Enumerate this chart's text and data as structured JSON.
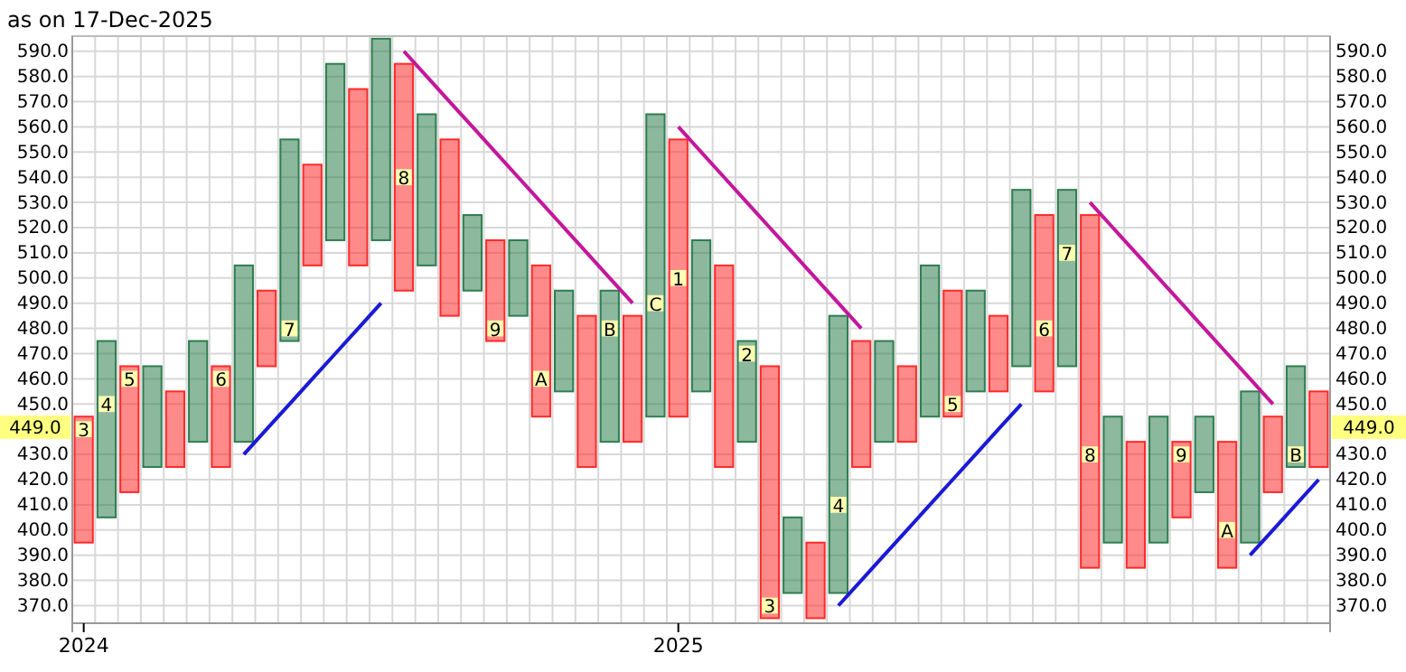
{
  "chart_data": {
    "type": "bar",
    "title": "as on 17-Dec-2025",
    "categories": [
      "2024",
      null,
      null,
      null,
      null,
      null,
      null,
      null,
      null,
      null,
      null,
      null,
      null,
      null,
      null,
      null,
      null,
      null,
      null,
      null,
      null,
      null,
      null,
      null,
      null,
      null,
      "2025",
      null,
      null,
      null,
      null,
      null,
      null,
      null,
      null,
      null,
      null,
      null,
      null,
      null,
      null,
      null,
      null,
      null,
      null,
      null,
      null,
      null,
      null,
      null,
      null,
      null,
      null,
      null,
      null
    ],
    "ylim": [
      363,
      596
    ],
    "yticks": [
      {
        "value": 370,
        "label": "370.0"
      },
      {
        "value": 380,
        "label": "380.0"
      },
      {
        "value": 390,
        "label": "390.0"
      },
      {
        "value": 400,
        "label": "400.0"
      },
      {
        "value": 410,
        "label": "410.0"
      },
      {
        "value": 420,
        "label": "420.0"
      },
      {
        "value": 430,
        "label": "430.0"
      },
      {
        "value": 450,
        "label": "450.0"
      },
      {
        "value": 460,
        "label": "460.0"
      },
      {
        "value": 470,
        "label": "470.0"
      },
      {
        "value": 480,
        "label": "480.0"
      },
      {
        "value": 490,
        "label": "490.0"
      },
      {
        "value": 500,
        "label": "500.0"
      },
      {
        "value": 510,
        "label": "510.0"
      },
      {
        "value": 520,
        "label": "520.0"
      },
      {
        "value": 530,
        "label": "530.0"
      },
      {
        "value": 540,
        "label": "540.0"
      },
      {
        "value": 550,
        "label": "550.0"
      },
      {
        "value": 560,
        "label": "560.0"
      },
      {
        "value": 570,
        "label": "570.0"
      },
      {
        "value": 580,
        "label": "580.0"
      },
      {
        "value": 590,
        "label": "590.0"
      }
    ],
    "y2lim": [
      363,
      596
    ],
    "y2ticks": [
      {
        "value": 370,
        "label": "370.0"
      },
      {
        "value": 380,
        "label": "380.0"
      },
      {
        "value": 390,
        "label": "390.0"
      },
      {
        "value": 400,
        "label": "400.0"
      },
      {
        "value": 410,
        "label": "410.0"
      },
      {
        "value": 420,
        "label": "420.0"
      },
      {
        "value": 430,
        "label": "430.0"
      },
      {
        "value": 450,
        "label": "450.0"
      },
      {
        "value": 460,
        "label": "460.0"
      },
      {
        "value": 470,
        "label": "470.0"
      },
      {
        "value": 480,
        "label": "480.0"
      },
      {
        "value": 490,
        "label": "490.0"
      },
      {
        "value": 500,
        "label": "500.0"
      },
      {
        "value": 510,
        "label": "510.0"
      },
      {
        "value": 520,
        "label": "520.0"
      },
      {
        "value": 530,
        "label": "530.0"
      },
      {
        "value": 540,
        "label": "540.0"
      },
      {
        "value": 550,
        "label": "550.0"
      },
      {
        "value": 560,
        "label": "560.0"
      },
      {
        "value": 570,
        "label": "570.0"
      },
      {
        "value": 580,
        "label": "580.0"
      },
      {
        "value": 590,
        "label": "590.0"
      }
    ],
    "grid": true,
    "series": [
      {
        "base": [
          395,
          405,
          415,
          425,
          425,
          435,
          425,
          435,
          465,
          475,
          505,
          515,
          505,
          515,
          495,
          505,
          485,
          495,
          475,
          485,
          445,
          455,
          425,
          435,
          435,
          445,
          445,
          455,
          425,
          435,
          365,
          375,
          365,
          375,
          425,
          435,
          435,
          445,
          445,
          455,
          455,
          465,
          455,
          465,
          385,
          395,
          385,
          395,
          405,
          415,
          385,
          395,
          415,
          425,
          425
        ],
        "values": [
          50,
          70,
          50,
          40,
          30,
          40,
          40,
          70,
          30,
          80,
          40,
          70,
          70,
          80,
          90,
          60,
          70,
          30,
          40,
          30,
          60,
          40,
          60,
          60,
          50,
          120,
          110,
          60,
          80,
          40,
          100,
          30,
          30,
          110,
          50,
          40,
          30,
          60,
          50,
          40,
          30,
          70,
          70,
          70,
          140,
          50,
          50,
          50,
          30,
          30,
          50,
          60,
          30,
          40,
          30
        ],
        "colors": [
          "#ff2a2a",
          "#2e7d4f",
          "#ff2a2a",
          "#2e7d4f",
          "#ff2a2a",
          "#2e7d4f",
          "#ff2a2a",
          "#2e7d4f",
          "#ff2a2a",
          "#2e7d4f",
          "#ff2a2a",
          "#2e7d4f",
          "#ff2a2a",
          "#2e7d4f",
          "#ff2a2a",
          "#2e7d4f",
          "#ff2a2a",
          "#2e7d4f",
          "#ff2a2a",
          "#2e7d4f",
          "#ff2a2a",
          "#2e7d4f",
          "#ff2a2a",
          "#2e7d4f",
          "#ff2a2a",
          "#2e7d4f",
          "#ff2a2a",
          "#2e7d4f",
          "#ff2a2a",
          "#2e7d4f",
          "#ff2a2a",
          "#2e7d4f",
          "#ff2a2a",
          "#2e7d4f",
          "#ff2a2a",
          "#2e7d4f",
          "#ff2a2a",
          "#2e7d4f",
          "#ff2a2a",
          "#2e7d4f",
          "#ff2a2a",
          "#2e7d4f",
          "#ff2a2a",
          "#2e7d4f",
          "#ff2a2a",
          "#2e7d4f",
          "#ff2a2a",
          "#2e7d4f",
          "#ff2a2a",
          "#2e7d4f",
          "#ff2a2a",
          "#2e7d4f",
          "#ff2a2a",
          "#2e7d4f",
          "#ff2a2a"
        ]
      },
      {
        "type": "line",
        "color": "#1a1ad6",
        "values": [
          null,
          null,
          null,
          null,
          null,
          null,
          null,
          430,
          440,
          450,
          460,
          470,
          480,
          490,
          null,
          null,
          null,
          null,
          null,
          null,
          null,
          null,
          null,
          null,
          null,
          null,
          null,
          null,
          null,
          null,
          null,
          null,
          null,
          null,
          null,
          null,
          null,
          null,
          null,
          null,
          null,
          null,
          null,
          null,
          null,
          null,
          null,
          null,
          null,
          null,
          null,
          null,
          null,
          null,
          null
        ]
      },
      {
        "type": "line",
        "color": "#c4179b",
        "values": [
          null,
          null,
          null,
          null,
          null,
          null,
          null,
          null,
          null,
          null,
          null,
          null,
          null,
          null,
          590,
          580,
          570,
          560,
          550,
          540,
          530,
          520,
          510,
          500,
          490,
          null,
          null,
          null,
          null,
          null,
          null,
          null,
          null,
          null,
          null,
          null,
          null,
          null,
          null,
          null,
          null,
          null,
          null,
          null,
          null,
          null,
          null,
          null,
          null,
          null,
          null,
          null,
          null,
          null,
          null
        ]
      },
      {
        "type": "line",
        "color": "#c4179b",
        "values": [
          null,
          null,
          null,
          null,
          null,
          null,
          null,
          null,
          null,
          null,
          null,
          null,
          null,
          null,
          null,
          null,
          null,
          null,
          null,
          null,
          null,
          null,
          null,
          null,
          null,
          null,
          560,
          550,
          540,
          530,
          520,
          510,
          500,
          490,
          480,
          null,
          null,
          null,
          null,
          null,
          null,
          null,
          null,
          null,
          null,
          null,
          null,
          null,
          null,
          null,
          null,
          null,
          null,
          null,
          null
        ]
      },
      {
        "type": "line",
        "color": "#1a1ad6",
        "values": [
          null,
          null,
          null,
          null,
          null,
          null,
          null,
          null,
          null,
          null,
          null,
          null,
          null,
          null,
          null,
          null,
          null,
          null,
          null,
          null,
          null,
          null,
          null,
          null,
          null,
          null,
          null,
          null,
          null,
          null,
          null,
          null,
          null,
          370,
          380,
          390,
          400,
          410,
          420,
          430,
          440,
          450,
          null,
          null,
          null,
          null,
          null,
          null,
          null,
          null,
          null,
          null,
          null,
          null,
          null
        ]
      },
      {
        "type": "line",
        "color": "#c4179b",
        "values": [
          null,
          null,
          null,
          null,
          null,
          null,
          null,
          null,
          null,
          null,
          null,
          null,
          null,
          null,
          null,
          null,
          null,
          null,
          null,
          null,
          null,
          null,
          null,
          null,
          null,
          null,
          null,
          null,
          null,
          null,
          null,
          null,
          null,
          null,
          null,
          null,
          null,
          null,
          null,
          null,
          null,
          null,
          null,
          null,
          530,
          520,
          510,
          500,
          490,
          480,
          470,
          460,
          450,
          null,
          null
        ]
      },
      {
        "type": "line",
        "color": "#1a1ad6",
        "values": [
          null,
          null,
          null,
          null,
          null,
          null,
          null,
          null,
          null,
          null,
          null,
          null,
          null,
          null,
          null,
          null,
          null,
          null,
          null,
          null,
          null,
          null,
          null,
          null,
          null,
          null,
          null,
          null,
          null,
          null,
          null,
          null,
          null,
          null,
          null,
          null,
          null,
          null,
          null,
          null,
          null,
          null,
          null,
          null,
          null,
          null,
          null,
          null,
          null,
          null,
          null,
          390,
          400,
          410,
          420
        ]
      },
      {
        "type": "scatter",
        "color": "#ffffb0",
        "marker": "square",
        "values": [
          440,
          450,
          460,
          null,
          null,
          null,
          460,
          null,
          null,
          480,
          null,
          null,
          null,
          null,
          540,
          null,
          null,
          null,
          480,
          null,
          460,
          null,
          null,
          480,
          null,
          490,
          500,
          null,
          null,
          470,
          370,
          null,
          null,
          410,
          null,
          null,
          null,
          null,
          450,
          null,
          null,
          null,
          480,
          510,
          430,
          null,
          null,
          null,
          430,
          null,
          400,
          null,
          null,
          430,
          null
        ]
      }
    ],
    "annotations": [
      "449.0",
      "3",
      "4",
      "5",
      "6",
      "7",
      "8",
      "9",
      "A",
      "B",
      "C",
      "1",
      "2",
      "3",
      "4",
      "5",
      "6",
      "7",
      "8",
      "9",
      "A",
      "B"
    ]
  }
}
